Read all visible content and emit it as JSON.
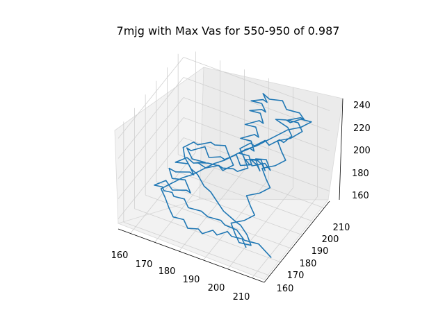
{
  "chart_data": {
    "type": "line3d",
    "title": "7mjg with Max Vas for 550-950 of 0.987",
    "xlabel": "",
    "ylabel": "",
    "zlabel": "",
    "xlim": [
      155,
      215
    ],
    "ylim": [
      155,
      215
    ],
    "zlim": [
      150,
      250
    ],
    "x_ticks": [
      "160",
      "170",
      "180",
      "190",
      "200",
      "210"
    ],
    "y_ticks": [
      "160",
      "170",
      "180",
      "190",
      "200",
      "210"
    ],
    "z_ticks": [
      "160",
      "180",
      "200",
      "220",
      "240"
    ],
    "grid": true,
    "pane_color": "#f2f2f2",
    "series": [
      {
        "color": "#1f77b4",
        "points": [
          [
            213,
            166,
            158
          ],
          [
            206,
            170,
            160
          ],
          [
            201,
            168,
            162
          ],
          [
            197,
            170,
            166
          ],
          [
            193,
            168,
            170
          ],
          [
            190,
            171,
            168
          ],
          [
            186,
            168,
            172
          ],
          [
            182,
            171,
            170
          ],
          [
            178,
            168,
            174
          ],
          [
            175,
            171,
            176
          ],
          [
            172,
            168,
            180
          ],
          [
            170,
            171,
            178
          ],
          [
            168,
            168,
            182
          ],
          [
            166,
            171,
            180
          ],
          [
            164,
            168,
            184
          ],
          [
            167,
            172,
            186
          ],
          [
            171,
            169,
            184
          ],
          [
            175,
            173,
            182
          ],
          [
            178,
            170,
            186
          ],
          [
            174,
            174,
            190
          ],
          [
            170,
            171,
            192
          ],
          [
            167,
            175,
            194
          ],
          [
            171,
            172,
            198
          ],
          [
            175,
            176,
            196
          ],
          [
            178,
            173,
            200
          ],
          [
            174,
            177,
            202
          ],
          [
            170,
            174,
            204
          ],
          [
            173,
            178,
            206
          ],
          [
            177,
            175,
            208
          ],
          [
            180,
            179,
            206
          ],
          [
            176,
            176,
            210
          ],
          [
            172,
            180,
            212
          ],
          [
            175,
            177,
            216
          ],
          [
            179,
            181,
            218
          ],
          [
            182,
            178,
            214
          ],
          [
            185,
            182,
            212
          ],
          [
            188,
            179,
            216
          ],
          [
            191,
            183,
            218
          ],
          [
            194,
            180,
            214
          ],
          [
            197,
            184,
            212
          ],
          [
            195,
            186,
            208
          ],
          [
            192,
            189,
            206
          ],
          [
            195,
            192,
            204
          ],
          [
            198,
            189,
            200
          ],
          [
            195,
            193,
            198
          ],
          [
            191,
            196,
            196
          ],
          [
            194,
            199,
            194
          ],
          [
            197,
            196,
            190
          ],
          [
            194,
            200,
            188
          ],
          [
            190,
            203,
            186
          ],
          [
            193,
            206,
            184
          ],
          [
            196,
            203,
            180
          ],
          [
            192,
            207,
            178
          ],
          [
            188,
            204,
            176
          ],
          [
            185,
            208,
            178
          ],
          [
            182,
            205,
            182
          ],
          [
            185,
            209,
            184
          ],
          [
            188,
            206,
            188
          ],
          [
            185,
            210,
            190
          ],
          [
            182,
            207,
            194
          ],
          [
            186,
            211,
            196
          ],
          [
            189,
            208,
            200
          ],
          [
            186,
            212,
            202
          ],
          [
            183,
            209,
            206
          ],
          [
            187,
            213,
            208
          ],
          [
            190,
            210,
            212
          ],
          [
            187,
            214,
            214
          ],
          [
            184,
            211,
            218
          ],
          [
            188,
            213,
            220
          ],
          [
            191,
            210,
            224
          ],
          [
            188,
            213,
            226
          ],
          [
            185,
            210,
            230
          ],
          [
            189,
            212,
            232
          ],
          [
            192,
            209,
            236
          ],
          [
            189,
            212,
            238
          ],
          [
            193,
            209,
            240
          ],
          [
            197,
            212,
            238
          ],
          [
            200,
            209,
            236
          ],
          [
            204,
            212,
            232
          ],
          [
            207,
            210,
            230
          ],
          [
            204,
            213,
            226
          ],
          [
            200,
            210,
            224
          ],
          [
            203,
            213,
            220
          ],
          [
            206,
            210,
            218
          ],
          [
            203,
            206,
            214
          ],
          [
            199,
            203,
            212
          ],
          [
            202,
            200,
            208
          ],
          [
            205,
            197,
            206
          ],
          [
            202,
            194,
            202
          ],
          [
            198,
            191,
            200
          ],
          [
            201,
            188,
            196
          ],
          [
            204,
            185,
            194
          ],
          [
            201,
            182,
            190
          ],
          [
            197,
            179,
            188
          ],
          [
            200,
            176,
            184
          ],
          [
            203,
            173,
            182
          ],
          [
            200,
            170,
            178
          ],
          [
            196,
            167,
            176
          ],
          [
            199,
            164,
            172
          ],
          [
            202,
            161,
            170
          ],
          [
            206,
            163,
            168
          ],
          [
            203,
            166,
            172
          ],
          [
            199,
            169,
            174
          ],
          [
            196,
            172,
            170
          ],
          [
            192,
            175,
            168
          ],
          [
            188,
            178,
            166
          ],
          [
            184,
            181,
            168
          ],
          [
            180,
            184,
            170
          ],
          [
            176,
            187,
            168
          ],
          [
            172,
            190,
            172
          ],
          [
            168,
            193,
            170
          ],
          [
            164,
            196,
            174
          ],
          [
            162,
            199,
            178
          ],
          [
            165,
            202,
            182
          ],
          [
            168,
            199,
            186
          ],
          [
            172,
            202,
            188
          ],
          [
            175,
            199,
            192
          ],
          [
            178,
            202,
            190
          ],
          [
            181,
            199,
            186
          ],
          [
            184,
            196,
            184
          ],
          [
            181,
            193,
            180
          ],
          [
            178,
            196,
            178
          ],
          [
            175,
            193,
            182
          ],
          [
            172,
            190,
            184
          ],
          [
            175,
            187,
            188
          ],
          [
            178,
            184,
            192
          ],
          [
            182,
            187,
            194
          ],
          [
            185,
            184,
            198
          ],
          [
            188,
            187,
            196
          ],
          [
            191,
            184,
            200
          ],
          [
            194,
            187,
            202
          ],
          [
            191,
            190,
            206
          ],
          [
            188,
            193,
            208
          ],
          [
            191,
            196,
            212
          ],
          [
            194,
            193,
            216
          ],
          [
            197,
            196,
            220
          ],
          [
            200,
            193,
            222
          ],
          [
            203,
            196,
            226
          ],
          [
            206,
            193,
            230
          ],
          [
            208,
            196,
            234
          ],
          [
            205,
            199,
            236
          ],
          [
            202,
            202,
            232
          ],
          [
            199,
            205,
            228
          ],
          [
            196,
            208,
            224
          ],
          [
            199,
            211,
            222
          ],
          [
            202,
            208,
            226
          ],
          [
            205,
            211,
            228
          ],
          [
            208,
            214,
            224
          ],
          [
            205,
            211,
            220
          ],
          [
            201,
            208,
            218
          ],
          [
            198,
            205,
            214
          ],
          [
            195,
            202,
            210
          ],
          [
            192,
            199,
            206
          ],
          [
            189,
            196,
            204
          ],
          [
            186,
            193,
            200
          ],
          [
            183,
            190,
            196
          ],
          [
            180,
            187,
            194
          ],
          [
            177,
            184,
            190
          ],
          [
            174,
            181,
            186
          ],
          [
            171,
            178,
            184
          ],
          [
            168,
            175,
            180
          ],
          [
            165,
            172,
            176
          ],
          [
            168,
            169,
            174
          ],
          [
            171,
            166,
            170
          ],
          [
            174,
            163,
            168
          ],
          [
            177,
            166,
            164
          ],
          [
            180,
            163,
            162
          ],
          [
            183,
            166,
            160
          ],
          [
            186,
            163,
            162
          ],
          [
            189,
            166,
            164
          ],
          [
            192,
            163,
            166
          ],
          [
            195,
            166,
            168
          ],
          [
            198,
            163,
            170
          ],
          [
            201,
            166,
            166
          ],
          [
            204,
            163,
            164
          ]
        ]
      }
    ]
  }
}
